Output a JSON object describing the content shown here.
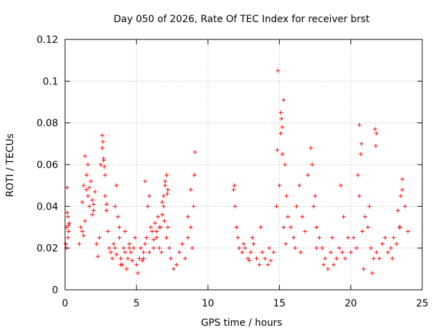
{
  "chart_data": {
    "type": "scatter",
    "title": "Day 050 of 2026, Rate Of TEC Index for receiver brst",
    "xlabel": "GPS time / hours",
    "ylabel": "ROTI / TECUs",
    "xlim": [
      0,
      25
    ],
    "ylim": [
      0,
      0.12
    ],
    "x_ticks": [
      "0",
      "5",
      "10",
      "15",
      "20",
      "25"
    ],
    "y_ticks": [
      "0",
      "0.02",
      "0.04",
      "0.06",
      "0.08",
      "0.1",
      "0.12"
    ],
    "grid": true,
    "marker": "plus",
    "color": "#ff0000",
    "series": [
      {
        "x": [
          0.05,
          0.1,
          0.15,
          0.2,
          0.25,
          0.3,
          0.1,
          0.2,
          0.15,
          0.25,
          1.0,
          1.1,
          1.2,
          1.3,
          1.4,
          1.5,
          1.6,
          1.7,
          1.8,
          1.9,
          2.0,
          2.1,
          1.2,
          1.4,
          1.5,
          1.7,
          1.9,
          2.0,
          1.3,
          1.6,
          2.2,
          2.3,
          2.4,
          2.5,
          2.6,
          2.7,
          2.8,
          2.9,
          3.0,
          3.1,
          2.6,
          2.7,
          2.8,
          2.9,
          2.65,
          2.75,
          3.2,
          3.3,
          3.4,
          3.5,
          3.6,
          3.7,
          3.8,
          3.9,
          4.0,
          4.1,
          4.2,
          4.3,
          4.4,
          4.5,
          4.6,
          4.7,
          4.8,
          4.9,
          3.5,
          3.8,
          4.2,
          4.5,
          3.6,
          3.9,
          5.0,
          5.1,
          5.2,
          5.3,
          5.4,
          5.5,
          5.6,
          5.7,
          5.8,
          5.9,
          6.0,
          6.1,
          6.2,
          6.3,
          6.4,
          6.5,
          6.6,
          5.5,
          5.6,
          5.9,
          6.2,
          6.4,
          6.6,
          6.7,
          6.8,
          6.9,
          7.0,
          7.1,
          7.2,
          7.3,
          6.8,
          6.9,
          7.0,
          7.1,
          7.2,
          6.75,
          6.95,
          7.15,
          7.4,
          7.6,
          7.8,
          8.0,
          8.2,
          8.4,
          8.6,
          8.8,
          9.0,
          9.1,
          8.6,
          8.8,
          9.05,
          8.9,
          11.8,
          11.9,
          12.0,
          12.1,
          12.2,
          12.4,
          12.6,
          12.8,
          13.0,
          13.2,
          13.4,
          13.6,
          13.8,
          14.0,
          14.2,
          14.4,
          14.6,
          12.5,
          13.1,
          13.7,
          14.3,
          11.85,
          12.9,
          14.8,
          14.9,
          15.0,
          15.1,
          15.2,
          15.3,
          15.4,
          15.5,
          15.6,
          15.8,
          16.0,
          16.2,
          16.4,
          16.6,
          16.8,
          14.85,
          15.1,
          15.15,
          15.2,
          15.3,
          15.45,
          16.1,
          16.5,
          17.0,
          17.2,
          17.4,
          17.6,
          17.8,
          18.0,
          18.2,
          18.4,
          18.6,
          18.8,
          19.0,
          19.2,
          19.4,
          19.6,
          19.8,
          17.3,
          17.5,
          17.6,
          18.1,
          18.7,
          19.3,
          19.5,
          20.0,
          20.2,
          20.4,
          20.6,
          20.8,
          21.0,
          21.2,
          21.4,
          21.6,
          21.8,
          22.0,
          20.5,
          20.6,
          20.7,
          20.75,
          21.3,
          21.7,
          21.75,
          21.8,
          20.9,
          21.5,
          22.2,
          22.4,
          22.6,
          22.8,
          23.0,
          23.2,
          23.4,
          23.6,
          23.8,
          24.0,
          23.3,
          23.5,
          23.6,
          22.9,
          23.45
        ],
        "y": [
          0.022,
          0.03,
          0.049,
          0.035,
          0.028,
          0.032,
          0.02,
          0.025,
          0.037,
          0.031,
          0.022,
          0.03,
          0.042,
          0.05,
          0.064,
          0.048,
          0.045,
          0.04,
          0.052,
          0.043,
          0.038,
          0.047,
          0.028,
          0.033,
          0.055,
          0.049,
          0.036,
          0.041,
          0.026,
          0.06,
          0.022,
          0.016,
          0.025,
          0.06,
          0.074,
          0.063,
          0.045,
          0.038,
          0.028,
          0.02,
          0.068,
          0.062,
          0.055,
          0.041,
          0.071,
          0.059,
          0.018,
          0.015,
          0.022,
          0.02,
          0.017,
          0.035,
          0.025,
          0.015,
          0.012,
          0.02,
          0.018,
          0.01,
          0.015,
          0.022,
          0.018,
          0.014,
          0.02,
          0.025,
          0.04,
          0.03,
          0.028,
          0.02,
          0.05,
          0.012,
          0.012,
          0.008,
          0.015,
          0.02,
          0.014,
          0.018,
          0.052,
          0.025,
          0.04,
          0.045,
          0.03,
          0.028,
          0.02,
          0.032,
          0.025,
          0.035,
          0.03,
          0.015,
          0.022,
          0.018,
          0.024,
          0.028,
          0.02,
          0.03,
          0.042,
          0.045,
          0.05,
          0.055,
          0.048,
          0.02,
          0.036,
          0.04,
          0.052,
          0.025,
          0.03,
          0.018,
          0.033,
          0.046,
          0.015,
          0.01,
          0.012,
          0.018,
          0.022,
          0.015,
          0.025,
          0.03,
          0.04,
          0.066,
          0.035,
          0.048,
          0.055,
          0.02,
          0.048,
          0.04,
          0.03,
          0.025,
          0.02,
          0.018,
          0.02,
          0.015,
          0.018,
          0.022,
          0.015,
          0.012,
          0.018,
          0.015,
          0.012,
          0.014,
          0.018,
          0.022,
          0.025,
          0.03,
          0.02,
          0.05,
          0.014,
          0.04,
          0.105,
          0.05,
          0.085,
          0.078,
          0.091,
          0.06,
          0.045,
          0.035,
          0.03,
          0.025,
          0.04,
          0.05,
          0.035,
          0.028,
          0.067,
          0.075,
          0.082,
          0.065,
          0.03,
          0.022,
          0.02,
          0.018,
          0.055,
          0.068,
          0.04,
          0.03,
          0.025,
          0.02,
          0.015,
          0.01,
          0.018,
          0.012,
          0.015,
          0.02,
          0.018,
          0.015,
          0.025,
          0.06,
          0.045,
          0.02,
          0.012,
          0.025,
          0.05,
          0.035,
          0.018,
          0.025,
          0.02,
          0.045,
          0.028,
          0.035,
          0.03,
          0.02,
          0.015,
          0.018,
          0.015,
          0.055,
          0.079,
          0.065,
          0.07,
          0.04,
          0.077,
          0.069,
          0.075,
          0.01,
          0.008,
          0.022,
          0.025,
          0.018,
          0.02,
          0.025,
          0.022,
          0.03,
          0.048,
          0.04,
          0.028,
          0.038,
          0.045,
          0.053,
          0.015,
          0.03
        ]
      }
    ]
  }
}
